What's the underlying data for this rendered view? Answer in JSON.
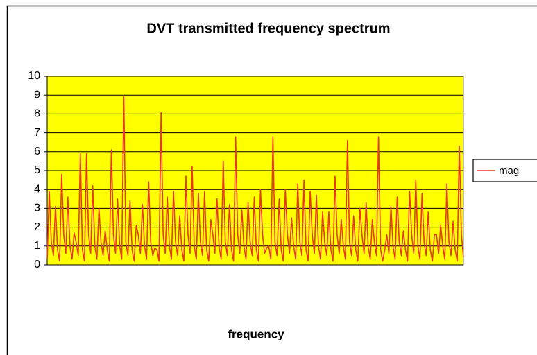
{
  "chart_data": {
    "type": "line",
    "title": "DVT transmitted frequency spectrum",
    "x_label": "frequency",
    "ylim": [
      0,
      10
    ],
    "yticks": [
      0,
      1,
      2,
      3,
      4,
      5,
      6,
      7,
      8,
      9,
      10
    ],
    "grid": true,
    "legend": "right",
    "plot_background": "#ffff00",
    "series": [
      {
        "name": "mag",
        "color": "#e8391f",
        "values": [
          0.3,
          3.9,
          1.2,
          0.5,
          3.1,
          0.8,
          0.2,
          4.8,
          1.6,
          0.6,
          3.6,
          1.0,
          0.3,
          1.7,
          1.2,
          0.5,
          5.9,
          0.8,
          0.2,
          5.9,
          1.6,
          0.6,
          4.2,
          1.0,
          0.3,
          3.0,
          1.2,
          0.5,
          1.8,
          0.8,
          0.2,
          6.1,
          1.6,
          0.6,
          3.5,
          1.0,
          0.3,
          8.9,
          1.2,
          0.5,
          3.4,
          0.8,
          0.2,
          2.1,
          1.6,
          0.6,
          3.2,
          1.0,
          0.3,
          4.4,
          1.2,
          0.5,
          0.9,
          0.8,
          0.2,
          8.1,
          1.6,
          0.6,
          3.6,
          1.0,
          0.3,
          3.9,
          1.2,
          0.5,
          2.6,
          0.8,
          0.2,
          4.7,
          1.6,
          0.6,
          5.2,
          1.0,
          0.3,
          3.8,
          1.2,
          0.5,
          3.9,
          0.8,
          0.2,
          2.4,
          1.6,
          0.6,
          3.5,
          1.0,
          0.3,
          5.5,
          1.2,
          0.5,
          3.2,
          0.8,
          0.2,
          6.8,
          1.6,
          0.6,
          2.9,
          1.0,
          0.3,
          3.3,
          1.2,
          0.5,
          3.6,
          0.8,
          0.2,
          4.0,
          1.6,
          0.6,
          0.9,
          1.0,
          0.3,
          6.8,
          1.2,
          0.5,
          3.5,
          0.8,
          0.2,
          4.0,
          1.6,
          0.6,
          2.5,
          1.0,
          0.3,
          4.3,
          1.2,
          0.5,
          4.5,
          0.8,
          0.2,
          3.9,
          1.6,
          0.6,
          3.7,
          1.0,
          0.3,
          2.8,
          1.2,
          0.5,
          2.8,
          0.8,
          0.2,
          4.7,
          1.6,
          0.6,
          2.4,
          1.0,
          0.3,
          6.6,
          1.2,
          0.5,
          2.6,
          0.8,
          0.2,
          3.0,
          1.6,
          0.6,
          3.3,
          1.0,
          0.3,
          2.4,
          1.2,
          0.5,
          6.8,
          0.8,
          0.2,
          0.8,
          1.6,
          0.6,
          3.1,
          1.0,
          0.3,
          3.6,
          1.2,
          0.5,
          1.8,
          0.8,
          0.2,
          3.9,
          1.6,
          0.6,
          4.5,
          1.0,
          0.3,
          3.8,
          1.2,
          0.5,
          2.8,
          0.8,
          0.2,
          1.6,
          1.6,
          0.6,
          2.1,
          1.0,
          0.3,
          4.3,
          1.2,
          0.5,
          2.3,
          0.8,
          0.2,
          6.3,
          1.6,
          0.4
        ]
      }
    ]
  }
}
